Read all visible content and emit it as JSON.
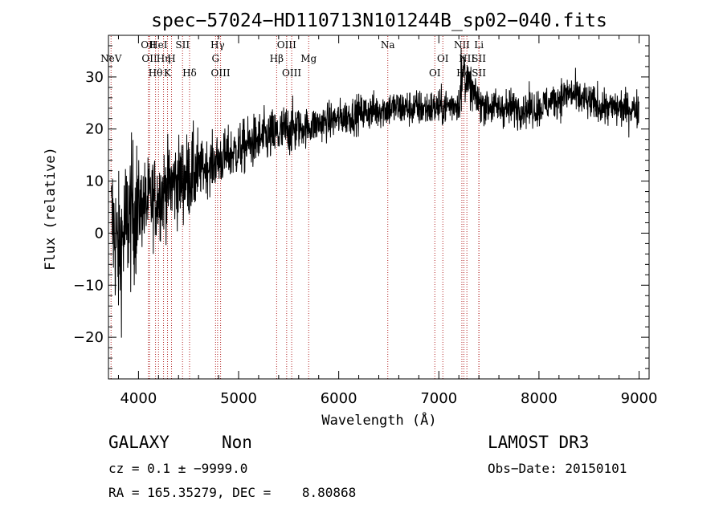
{
  "chart_data": {
    "type": "line",
    "title": "spec−57024−HD110713N101244B_sp02−040.fits",
    "xlabel": "Wavelength (Å)",
    "ylabel": "Flux (relative)",
    "xlim": [
      3700,
      9100
    ],
    "ylim": [
      -28,
      38
    ],
    "xticks": [
      4000,
      5000,
      6000,
      7000,
      8000,
      9000
    ],
    "yticks": [
      -20,
      -10,
      0,
      10,
      20,
      30
    ],
    "ytick_labels": [
      "−20",
      "−10",
      "0",
      "10",
      "20",
      "30"
    ],
    "spectrum_envelope": {
      "x": [
        3740,
        3800,
        3900,
        4000,
        4100,
        4200,
        4300,
        4400,
        4500,
        4600,
        4700,
        4800,
        4900,
        5000,
        5200,
        5400,
        5500,
        5600,
        5800,
        6000,
        6200,
        6500,
        6800,
        7000,
        7200,
        7250,
        7400,
        7600,
        7800,
        8000,
        8200,
        8300,
        8500,
        8700,
        9000
      ],
      "y": [
        2,
        -4,
        3,
        5,
        6,
        7,
        9,
        10,
        11,
        12,
        13,
        14,
        15,
        16,
        18,
        19,
        20,
        20,
        21,
        22,
        23,
        24,
        24,
        24,
        25,
        30,
        25,
        24,
        24,
        24,
        26,
        27,
        25,
        24,
        24
      ]
    },
    "lines": [
      {
        "label": "NeV",
        "wave": 3726,
        "row": 1
      },
      {
        "label": "OII",
        "wave": 4100,
        "row": 0
      },
      {
        "label": "OII",
        "wave": 4110,
        "row": 1
      },
      {
        "label": "HeI",
        "wave": 4200,
        "row": 0
      },
      {
        "label": "Hη",
        "wave": 4250,
        "row": 1
      },
      {
        "label": "Hθ",
        "wave": 4170,
        "row": 2
      },
      {
        "label": "H",
        "wave": 4330,
        "row": 1
      },
      {
        "label": "K",
        "wave": 4290,
        "row": 2
      },
      {
        "label": "SII",
        "wave": 4440,
        "row": 0
      },
      {
        "label": "Hδ",
        "wave": 4510,
        "row": 2
      },
      {
        "label": "Hγ",
        "wave": 4790,
        "row": 0
      },
      {
        "label": "G",
        "wave": 4770,
        "row": 1
      },
      {
        "label": "OIII",
        "wave": 4820,
        "row": 2
      },
      {
        "label": "OIII",
        "wave": 5480,
        "row": 0
      },
      {
        "label": "Hβ",
        "wave": 5380,
        "row": 1
      },
      {
        "label": "OIII",
        "wave": 5530,
        "row": 2
      },
      {
        "label": "Mg",
        "wave": 5700,
        "row": 1
      },
      {
        "label": "Na",
        "wave": 6490,
        "row": 0
      },
      {
        "label": "OI",
        "wave": 7040,
        "row": 1
      },
      {
        "label": "OI",
        "wave": 6960,
        "row": 2
      },
      {
        "label": "NII",
        "wave": 7230,
        "row": 0
      },
      {
        "label": "Li",
        "wave": 7400,
        "row": 0
      },
      {
        "label": "NII",
        "wave": 7280,
        "row": 1
      },
      {
        "label": "SII",
        "wave": 7400,
        "row": 1
      },
      {
        "label": "Hα",
        "wave": 7250,
        "row": 2
      },
      {
        "label": "SII",
        "wave": 7400,
        "row": 2
      }
    ]
  },
  "info": {
    "class": "GALAXY",
    "subclass": "Non",
    "survey": "LAMOST DR3",
    "cz": "cz = 0.1 ± −9999.0",
    "obs_date": "Obs−Date: 20150101",
    "radec": "RA = 165.35279, DEC =    8.80868"
  }
}
